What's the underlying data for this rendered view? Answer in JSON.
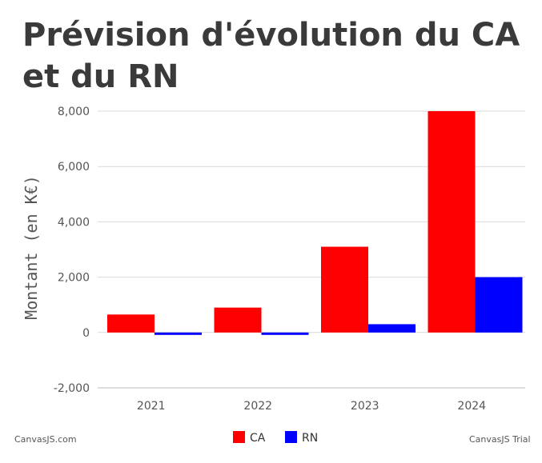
{
  "chart_data": {
    "type": "bar",
    "title": "Prévision d'évolution du CA et du RN",
    "xlabel": "",
    "ylabel": "Montant (en K€)",
    "categories": [
      "2021",
      "2022",
      "2023",
      "2024"
    ],
    "series": [
      {
        "name": "CA",
        "color": "#ff0000",
        "values": [
          650,
          900,
          3100,
          8000
        ]
      },
      {
        "name": "RN",
        "color": "#0000ff",
        "values": [
          -50,
          -80,
          300,
          2000
        ]
      }
    ],
    "ylim": [
      -2000,
      8000
    ],
    "yticks": [
      -2000,
      0,
      2000,
      4000,
      6000,
      8000
    ],
    "ytick_labels": [
      "-2,000",
      "0",
      "2,000",
      "4,000",
      "6,000",
      "8,000"
    ],
    "grid": true,
    "legend_position": "bottom"
  },
  "credits": {
    "left": "CanvasJS.com",
    "right": "CanvasJS Trial"
  }
}
